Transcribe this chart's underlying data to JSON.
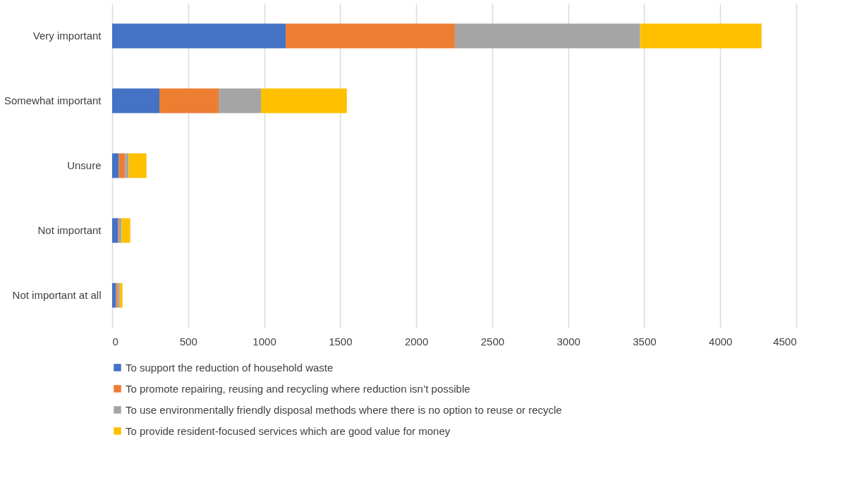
{
  "chart_data": {
    "type": "bar",
    "orientation": "horizontal",
    "stacked": true,
    "categories": [
      "Very important",
      "Somewhat important",
      "Unsure",
      "Not important",
      "Not important at all"
    ],
    "series": [
      {
        "name": "To support the reduction of household waste",
        "color": "#4472c4",
        "values": [
          1142,
          311,
          43,
          39,
          25
        ]
      },
      {
        "name": "To promote repairing, reusing and recycling where reduction isn’t possible",
        "color": "#ed7d31",
        "values": [
          1112,
          390,
          42,
          7,
          11
        ]
      },
      {
        "name": "To use environmentally friendly disposal methods where there is no option to reuse or recycle",
        "color": "#a5a5a5",
        "values": [
          1219,
          278,
          23,
          16,
          14
        ]
      },
      {
        "name": "To provide resident-focused services which are good value for money",
        "color": "#ffc000",
        "values": [
          799,
          565,
          118,
          57,
          18
        ]
      }
    ],
    "xlim": [
      0,
      4500
    ],
    "xticks": [
      0,
      500,
      1000,
      1500,
      2000,
      2500,
      3000,
      3500,
      4000,
      4500
    ],
    "grid": "x",
    "legend": "bottom"
  }
}
